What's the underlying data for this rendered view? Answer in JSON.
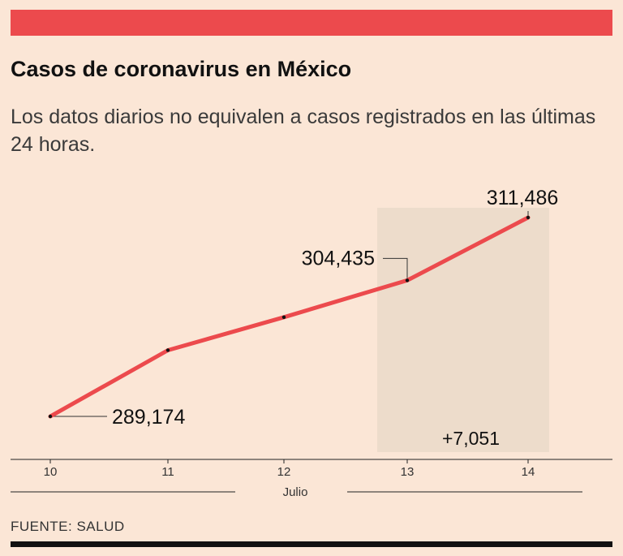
{
  "header": {
    "title": "Casos de coronavirus en México",
    "subtitle": "Los datos diarios no equivalen a casos registrados en las últimas 24 horas."
  },
  "chart_data": {
    "type": "line",
    "title": "Casos de coronavirus en México",
    "subtitle": "Los datos diarios no equivalen a casos registrados en las últimas 24 horas.",
    "xlabel": "Julio",
    "ylabel": "",
    "categories": [
      "10",
      "11",
      "12",
      "13",
      "14"
    ],
    "series": [
      {
        "name": "Casos",
        "values": [
          289174,
          296600,
          300300,
          304435,
          311486
        ]
      }
    ],
    "ylim": [
      285000,
      314000
    ],
    "data_labels": [
      {
        "index": 0,
        "text": "289,174"
      },
      {
        "index": 3,
        "text": "304,435"
      },
      {
        "index": 4,
        "text": "311,486"
      }
    ],
    "highlight": {
      "from_index": 3,
      "to_index": 4,
      "label": "+7,051"
    },
    "grid": false
  },
  "footer": {
    "source": "FUENTE: SALUD"
  },
  "colors": {
    "background": "#fbe6d6",
    "line": "#ec4a4d",
    "highlight": "#eddccb",
    "text": "#111111"
  }
}
